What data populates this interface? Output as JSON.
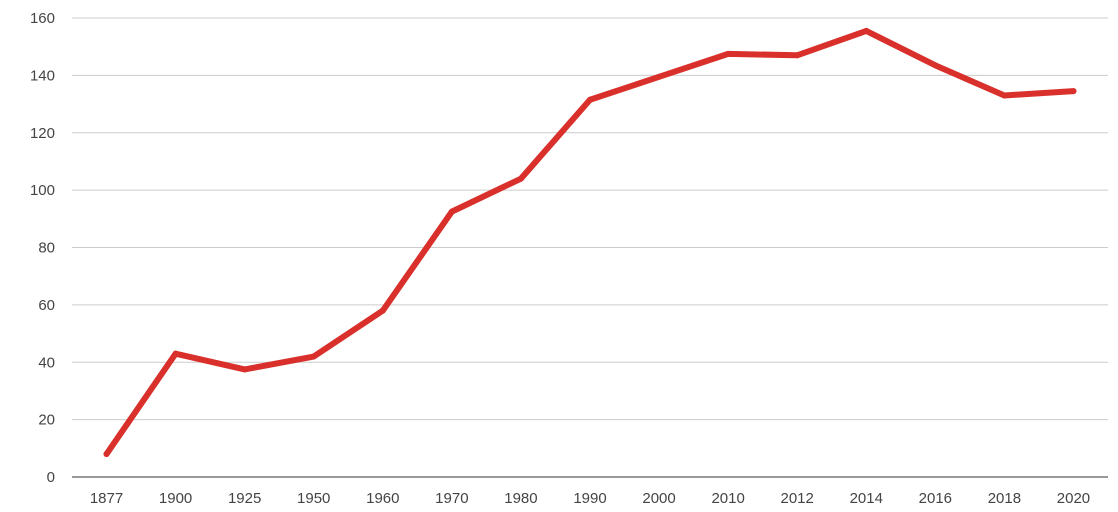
{
  "chart_data": {
    "type": "line",
    "title": "",
    "xlabel": "",
    "ylabel": "",
    "categories": [
      "1877",
      "1900",
      "1925",
      "1950",
      "1960",
      "1970",
      "1980",
      "1990",
      "2000",
      "2010",
      "2012",
      "2014",
      "2016",
      "2018",
      "2020"
    ],
    "series": [
      {
        "values": [
          8,
          43,
          37.5,
          42,
          58,
          92.5,
          104,
          131.5,
          139.5,
          147.5,
          147,
          155.5,
          143.5,
          133,
          134.5
        ],
        "color": "#d9302b"
      }
    ],
    "ylim": [
      0,
      160
    ],
    "yticks": [
      0,
      20,
      40,
      60,
      80,
      100,
      120,
      140,
      160
    ],
    "grid": true,
    "legend": "none"
  }
}
